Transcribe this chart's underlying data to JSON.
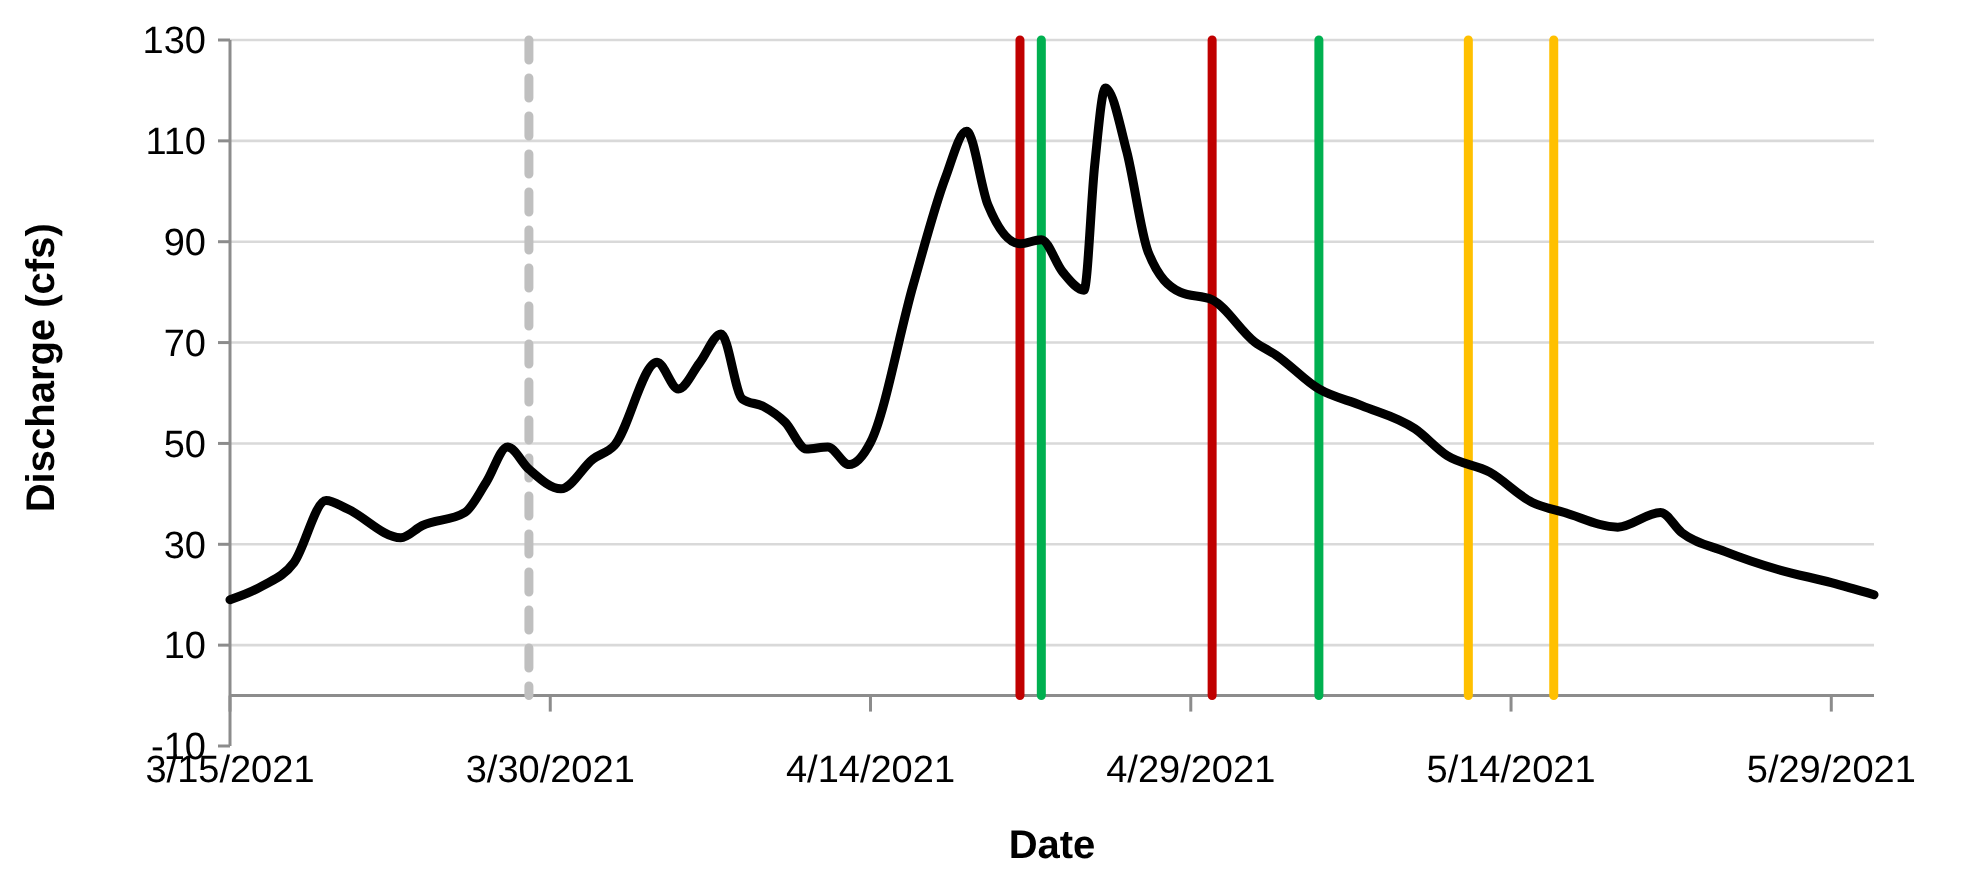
{
  "chart_data": {
    "type": "line",
    "xlabel": "Date",
    "ylabel": "Discharge (cfs)",
    "x": [
      "2021-03-15",
      "2021-03-16T12:00",
      "2021-03-18",
      "2021-03-19T12:00",
      "2021-03-20T12:00",
      "2021-03-23",
      "2021-03-24",
      "2021-03-26",
      "2021-03-27",
      "2021-03-28",
      "2021-03-29",
      "2021-03-30T12:00",
      "2021-04-01",
      "2021-04-02",
      "2021-04-04",
      "2021-04-05",
      "2021-04-06",
      "2021-04-07",
      "2021-04-08",
      "2021-04-09",
      "2021-04-10",
      "2021-04-11",
      "2021-04-12",
      "2021-04-13",
      "2021-04-14",
      "2021-04-16",
      "2021-04-17T12:00",
      "2021-04-18T12:00",
      "2021-04-19T12:00",
      "2021-04-21",
      "2021-04-22",
      "2021-04-23",
      "2021-04-24",
      "2021-04-24T12:00",
      "2021-04-25",
      "2021-04-26",
      "2021-04-27",
      "2021-04-28T12:00",
      "2021-04-30",
      "2021-05-02",
      "2021-05-03",
      "2021-05-05",
      "2021-05-07",
      "2021-05-09T12:00",
      "2021-05-11",
      "2021-05-13",
      "2021-05-15",
      "2021-05-16T12:00",
      "2021-05-19",
      "2021-05-21",
      "2021-05-22",
      "2021-05-24",
      "2021-05-26T12:00",
      "2021-05-29",
      "2021-05-31"
    ],
    "series": [
      {
        "color": "#000000",
        "values": [
          19,
          21.7,
          26.4,
          38.7,
          37,
          31.3,
          33.7,
          36.3,
          42.3,
          49.3,
          44.9,
          41,
          46.9,
          49.6,
          66.1,
          60.8,
          66,
          71.7,
          58.8,
          57.3,
          54.2,
          48.9,
          49.3,
          45.8,
          50.2,
          81.4,
          102.6,
          111.9,
          97.3,
          89.6,
          90.4,
          84,
          80.4,
          105.2,
          120.5,
          107.9,
          88,
          80,
          78.5,
          70.1,
          67.5,
          60.8,
          57.5,
          52.9,
          47.6,
          44.3,
          38.3,
          36.3,
          33.4,
          36.3,
          32.3,
          28.6,
          25,
          22.4,
          20
        ]
      }
    ],
    "xlim": [
      "2021-03-15",
      "2021-05-31"
    ],
    "xticks": [
      {
        "value": "2021-03-15",
        "label": "3/15/2021"
      },
      {
        "value": "2021-03-30",
        "label": "3/30/2021"
      },
      {
        "value": "2021-04-14",
        "label": "4/14/2021"
      },
      {
        "value": "2021-04-29",
        "label": "4/29/2021"
      },
      {
        "value": "2021-05-14",
        "label": "5/14/2021"
      },
      {
        "value": "2021-05-29",
        "label": "5/29/2021"
      }
    ],
    "ylim": [
      -10,
      130
    ],
    "yticks": [
      -10,
      10,
      30,
      50,
      70,
      90,
      110,
      130
    ],
    "grid": "y",
    "marker": "none",
    "line_style": "solid",
    "ref_lines": [
      {
        "axis": "x",
        "value": "2021-03-29",
        "color": "#bfbfbf",
        "line_style": "dashed"
      },
      {
        "axis": "x",
        "value": "2021-04-21",
        "color": "#c00000"
      },
      {
        "axis": "x",
        "value": "2021-04-22",
        "color": "#00b050"
      },
      {
        "axis": "x",
        "value": "2021-04-30",
        "color": "#c00000"
      },
      {
        "axis": "x",
        "value": "2021-05-05",
        "color": "#00b050"
      },
      {
        "axis": "x",
        "value": "2021-05-12",
        "color": "#ffc000"
      },
      {
        "axis": "x",
        "value": "2021-05-16",
        "color": "#ffc000"
      }
    ]
  }
}
